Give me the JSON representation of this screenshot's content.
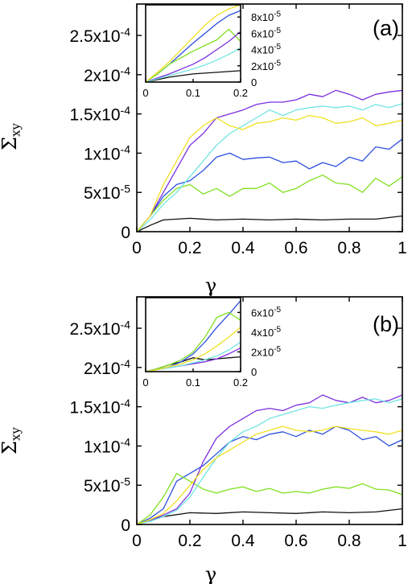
{
  "chart_data": [
    {
      "type": "line",
      "panel_label": "(a)",
      "xlabel": "γ",
      "ylabel": "Σxy",
      "ylabel_main": "Σ",
      "ylabel_sub": "xy",
      "xlim": [
        0,
        1
      ],
      "ylim": [
        0,
        0.00029
      ],
      "x_ticks": [
        0,
        0.2,
        0.4,
        0.6,
        0.8,
        1
      ],
      "x_tick_labels": [
        "0",
        "0.2",
        "0.4",
        "0.6",
        "0.8",
        "1"
      ],
      "y_ticks": [
        0,
        5e-05,
        0.0001,
        0.00015,
        0.0002,
        0.00025
      ],
      "y_tick_labels": [
        {
          "m": "0",
          "e": ""
        },
        {
          "m": "5x10",
          "e": "-5"
        },
        {
          "m": "1x10",
          "e": "-4"
        },
        {
          "m": "1.5x10",
          "e": "-4"
        },
        {
          "m": "2x10",
          "e": "-4"
        },
        {
          "m": "2.5x10",
          "e": "-4"
        }
      ],
      "series": [
        {
          "color": "#111111",
          "x": [
            0,
            0.05,
            0.1,
            0.2,
            0.3,
            0.4,
            0.5,
            0.6,
            0.7,
            0.8,
            0.9,
            1.0
          ],
          "y": [
            0,
            8e-06,
            1.5e-05,
            1.7e-05,
            1.5e-05,
            1.6e-05,
            1.5e-05,
            1.6e-05,
            1.5e-05,
            1.6e-05,
            1.6e-05,
            2e-05
          ]
        },
        {
          "color": "#2d4fe0",
          "x": [
            0,
            0.05,
            0.1,
            0.15,
            0.2,
            0.25,
            0.3,
            0.35,
            0.4,
            0.45,
            0.5,
            0.55,
            0.6,
            0.65,
            0.7,
            0.75,
            0.8,
            0.85,
            0.9,
            0.95,
            1.0
          ],
          "y": [
            0,
            2e-05,
            4.5e-05,
            6e-05,
            6.5e-05,
            7.8e-05,
            9.5e-05,
            0.0001,
            9.2e-05,
            9.4e-05,
            9.5e-05,
            8.8e-05,
            9e-05,
            8e-05,
            8.8e-05,
            8.3e-05,
            9.5e-05,
            9e-05,
            0.000108,
            0.000105,
            0.000118
          ]
        },
        {
          "color": "#7fe020",
          "x": [
            0,
            0.05,
            0.1,
            0.15,
            0.2,
            0.25,
            0.3,
            0.35,
            0.4,
            0.45,
            0.5,
            0.55,
            0.6,
            0.65,
            0.7,
            0.75,
            0.8,
            0.85,
            0.9,
            0.95,
            1.0
          ],
          "y": [
            0,
            2e-05,
            4e-05,
            5.5e-05,
            6e-05,
            4.8e-05,
            5.5e-05,
            4.5e-05,
            5.5e-05,
            5.5e-05,
            6.2e-05,
            5e-05,
            5.5e-05,
            6.5e-05,
            7.2e-05,
            6.2e-05,
            6e-05,
            5e-05,
            6.8e-05,
            5.8e-05,
            7e-05
          ]
        },
        {
          "color": "#7b2fe0",
          "x": [
            0,
            0.05,
            0.1,
            0.15,
            0.2,
            0.25,
            0.3,
            0.35,
            0.4,
            0.45,
            0.5,
            0.55,
            0.6,
            0.65,
            0.7,
            0.75,
            0.8,
            0.85,
            0.9,
            0.95,
            1.0
          ],
          "y": [
            0,
            2e-05,
            5e-05,
            8e-05,
            0.00011,
            0.000125,
            0.000145,
            0.00015,
            0.000155,
            0.000162,
            0.000165,
            0.000165,
            0.000168,
            0.000175,
            0.000172,
            0.00018,
            0.000175,
            0.000168,
            0.000175,
            0.000178,
            0.00018
          ]
        },
        {
          "color": "#6fe6e0",
          "x": [
            0,
            0.05,
            0.1,
            0.15,
            0.2,
            0.25,
            0.3,
            0.35,
            0.4,
            0.45,
            0.5,
            0.55,
            0.6,
            0.65,
            0.7,
            0.75,
            0.8,
            0.85,
            0.9,
            0.95,
            1.0
          ],
          "y": [
            0,
            1.5e-05,
            3.5e-05,
            5e-05,
            7e-05,
            9e-05,
            0.00011,
            0.000125,
            0.000135,
            0.000145,
            0.000155,
            0.000148,
            0.000155,
            0.000158,
            0.00016,
            0.000158,
            0.00016,
            0.000155,
            0.000162,
            0.000158,
            0.000163
          ]
        },
        {
          "color": "#f0e020",
          "x": [
            0,
            0.05,
            0.1,
            0.15,
            0.2,
            0.25,
            0.3,
            0.35,
            0.4,
            0.45,
            0.5,
            0.55,
            0.6,
            0.65,
            0.7,
            0.75,
            0.8,
            0.85,
            0.9,
            0.95,
            1.0
          ],
          "y": [
            0,
            2e-05,
            6e-05,
            9e-05,
            0.00012,
            0.000135,
            0.000145,
            0.000135,
            0.00013,
            0.000138,
            0.00014,
            0.000145,
            0.000142,
            0.000148,
            0.000145,
            0.000138,
            0.00014,
            0.000145,
            0.000135,
            0.000138,
            0.000142
          ]
        }
      ],
      "inset": {
        "xlim": [
          0,
          0.2
        ],
        "ylim": [
          0,
          9.5e-05
        ],
        "x_ticks": [
          0,
          0.1,
          0.2
        ],
        "x_tick_labels": [
          "0",
          "0.1",
          "0.2"
        ],
        "y_ticks": [
          0,
          2e-05,
          4e-05,
          6e-05,
          8e-05
        ],
        "y_tick_labels": [
          {
            "m": "0",
            "e": ""
          },
          {
            "m": "2x10",
            "e": "-5"
          },
          {
            "m": "4x10",
            "e": "-5"
          },
          {
            "m": "6x10",
            "e": "-5"
          },
          {
            "m": "8x10",
            "e": "-5"
          }
        ],
        "series": [
          {
            "color": "#111111",
            "x": [
              0,
              0.025,
              0.05,
              0.075,
              0.1,
              0.125,
              0.15,
              0.175,
              0.2
            ],
            "y": [
              0,
              3e-06,
              6e-06,
              8e-06,
              1e-05,
              1.1e-05,
              1.2e-05,
              1.3e-05,
              1.4e-05
            ]
          },
          {
            "color": "#2d4fe0",
            "x": [
              0,
              0.025,
              0.05,
              0.075,
              0.1,
              0.125,
              0.15,
              0.175,
              0.2
            ],
            "y": [
              0,
              1e-05,
              2.2e-05,
              3.5e-05,
              4.8e-05,
              6e-05,
              7.2e-05,
              8.2e-05,
              8.8e-05
            ]
          },
          {
            "color": "#7fe020",
            "x": [
              0,
              0.025,
              0.05,
              0.075,
              0.1,
              0.125,
              0.15,
              0.175,
              0.2
            ],
            "y": [
              0,
              1e-05,
              2.2e-05,
              3e-05,
              3.8e-05,
              4.5e-05,
              5.2e-05,
              6.5e-05,
              5e-05
            ]
          },
          {
            "color": "#7b2fe0",
            "x": [
              0,
              0.025,
              0.05,
              0.075,
              0.1,
              0.125,
              0.15,
              0.175,
              0.2
            ],
            "y": [
              0,
              5e-06,
              1e-05,
              1.6e-05,
              2.2e-05,
              3e-05,
              4e-05,
              5e-05,
              6.2e-05
            ]
          },
          {
            "color": "#6fe6e0",
            "x": [
              0,
              0.025,
              0.05,
              0.075,
              0.1,
              0.125,
              0.15,
              0.175,
              0.2
            ],
            "y": [
              0,
              4e-06,
              8e-06,
              1.2e-05,
              1.6e-05,
              2.1e-05,
              2.7e-05,
              3.4e-05,
              4.2e-05
            ]
          },
          {
            "color": "#f0e020",
            "x": [
              0,
              0.025,
              0.05,
              0.075,
              0.1,
              0.125,
              0.15,
              0.175,
              0.2
            ],
            "y": [
              0,
              1.2e-05,
              2.5e-05,
              4e-05,
              5.5e-05,
              7e-05,
              8.2e-05,
              9e-05,
              9.5e-05
            ]
          }
        ]
      }
    },
    {
      "type": "line",
      "panel_label": "(b)",
      "xlabel": "γ",
      "ylabel": "Σxy",
      "ylabel_main": "Σ",
      "ylabel_sub": "xy",
      "xlim": [
        0,
        1
      ],
      "ylim": [
        0,
        0.00029
      ],
      "x_ticks": [
        0,
        0.2,
        0.4,
        0.6,
        0.8,
        1
      ],
      "x_tick_labels": [
        "0",
        "0.2",
        "0.4",
        "0.6",
        "0.8",
        "1"
      ],
      "y_ticks": [
        0,
        5e-05,
        0.0001,
        0.00015,
        0.0002,
        0.00025
      ],
      "y_tick_labels": [
        {
          "m": "0",
          "e": ""
        },
        {
          "m": "5x10",
          "e": "-5"
        },
        {
          "m": "1x10",
          "e": "-4"
        },
        {
          "m": "1.5x10",
          "e": "-4"
        },
        {
          "m": "2x10",
          "e": "-4"
        },
        {
          "m": "2.5x10",
          "e": "-4"
        }
      ],
      "series": [
        {
          "color": "#111111",
          "x": [
            0,
            0.05,
            0.1,
            0.2,
            0.3,
            0.4,
            0.5,
            0.6,
            0.7,
            0.8,
            0.9,
            1.0
          ],
          "y": [
            0,
            5e-06,
            1e-05,
            1.5e-05,
            1.4e-05,
            1.6e-05,
            1.5e-05,
            1.4e-05,
            1.6e-05,
            1.5e-05,
            1.6e-05,
            2e-05
          ]
        },
        {
          "color": "#2d4fe0",
          "x": [
            0,
            0.05,
            0.1,
            0.15,
            0.2,
            0.25,
            0.3,
            0.35,
            0.4,
            0.45,
            0.5,
            0.55,
            0.6,
            0.65,
            0.7,
            0.75,
            0.8,
            0.85,
            0.9,
            0.95,
            1.0
          ],
          "y": [
            0,
            8e-06,
            2e-05,
            5.5e-05,
            6.5e-05,
            7.5e-05,
            9e-05,
            0.000105,
            0.000112,
            0.000108,
            0.000115,
            0.000118,
            0.000112,
            0.00012,
            0.000115,
            0.000125,
            0.00012,
            0.000108,
            0.000112,
            0.0001,
            0.000108
          ]
        },
        {
          "color": "#7fe020",
          "x": [
            0,
            0.05,
            0.1,
            0.15,
            0.2,
            0.25,
            0.3,
            0.35,
            0.4,
            0.45,
            0.5,
            0.55,
            0.6,
            0.65,
            0.7,
            0.75,
            0.8,
            0.85,
            0.9,
            0.95,
            1.0
          ],
          "y": [
            0,
            1.2e-05,
            3.5e-05,
            6.5e-05,
            5.5e-05,
            4.5e-05,
            4e-05,
            4.5e-05,
            4.8e-05,
            4.2e-05,
            4.6e-05,
            4e-05,
            4.2e-05,
            4e-05,
            4.5e-05,
            4.8e-05,
            4.6e-05,
            5.2e-05,
            4.5e-05,
            4.4e-05,
            3.8e-05
          ]
        },
        {
          "color": "#7b2fe0",
          "x": [
            0,
            0.05,
            0.1,
            0.15,
            0.2,
            0.25,
            0.3,
            0.35,
            0.4,
            0.45,
            0.5,
            0.55,
            0.6,
            0.65,
            0.7,
            0.75,
            0.8,
            0.85,
            0.9,
            0.95,
            1.0
          ],
          "y": [
            0,
            5e-06,
            1.2e-05,
            2e-05,
            4e-05,
            8e-05,
            0.00011,
            0.000125,
            0.000135,
            0.000145,
            0.000148,
            0.000145,
            0.000152,
            0.000155,
            0.000165,
            0.000158,
            0.000155,
            0.000162,
            0.000155,
            0.000158,
            0.000165
          ]
        },
        {
          "color": "#6fe6e0",
          "x": [
            0,
            0.05,
            0.1,
            0.15,
            0.2,
            0.25,
            0.3,
            0.35,
            0.4,
            0.45,
            0.5,
            0.55,
            0.6,
            0.65,
            0.7,
            0.75,
            0.8,
            0.85,
            0.9,
            0.95,
            1.0
          ],
          "y": [
            0,
            4e-06,
            1e-05,
            1.8e-05,
            3.5e-05,
            6e-05,
            8.5e-05,
            0.000105,
            0.000118,
            0.000125,
            0.000135,
            0.00014,
            0.000145,
            0.00015,
            0.000148,
            0.000152,
            0.000155,
            0.000158,
            0.00016,
            0.000155,
            0.00016
          ]
        },
        {
          "color": "#f0e020",
          "x": [
            0,
            0.05,
            0.1,
            0.15,
            0.2,
            0.25,
            0.3,
            0.35,
            0.4,
            0.45,
            0.5,
            0.55,
            0.6,
            0.65,
            0.7,
            0.75,
            0.8,
            0.85,
            0.9,
            0.95,
            1.0
          ],
          "y": [
            0,
            6e-06,
            1.4e-05,
            3e-05,
            5e-05,
            7e-05,
            8.5e-05,
            9.5e-05,
            0.000105,
            0.000115,
            0.00012,
            0.000125,
            0.00012,
            0.000118,
            0.00012,
            0.000125,
            0.000122,
            0.00012,
            0.000118,
            0.000115,
            0.00012
          ]
        }
      ],
      "inset": {
        "xlim": [
          0,
          0.2
        ],
        "ylim": [
          0,
          7.5e-05
        ],
        "x_ticks": [
          0,
          0.1,
          0.2
        ],
        "x_tick_labels": [
          "0",
          "0.1",
          "0.2"
        ],
        "y_ticks": [
          0,
          2e-05,
          4e-05,
          6e-05
        ],
        "y_tick_labels": [
          {
            "m": "0",
            "e": ""
          },
          {
            "m": "2x10",
            "e": "-5"
          },
          {
            "m": "4x10",
            "e": "-5"
          },
          {
            "m": "6x10",
            "e": "-5"
          }
        ],
        "series": [
          {
            "color": "#111111",
            "x": [
              0,
              0.025,
              0.05,
              0.075,
              0.1,
              0.125,
              0.15,
              0.175,
              0.2
            ],
            "y": [
              0,
              3e-06,
              7e-06,
              1e-05,
              1.4e-05,
              1.2e-05,
              1.3e-05,
              1.4e-05,
              1.5e-05
            ]
          },
          {
            "color": "#2d4fe0",
            "x": [
              0,
              0.025,
              0.05,
              0.075,
              0.1,
              0.125,
              0.15,
              0.175,
              0.2
            ],
            "y": [
              0,
              2e-06,
              5e-06,
              1e-05,
              1.8e-05,
              3e-05,
              4.5e-05,
              5.8e-05,
              7.2e-05
            ]
          },
          {
            "color": "#7fe020",
            "x": [
              0,
              0.025,
              0.05,
              0.075,
              0.1,
              0.125,
              0.15,
              0.175,
              0.2
            ],
            "y": [
              0,
              3e-06,
              7e-06,
              1.2e-05,
              2e-05,
              3.5e-05,
              5.5e-05,
              6e-05,
              5.2e-05
            ]
          },
          {
            "color": "#7b2fe0",
            "x": [
              0,
              0.025,
              0.05,
              0.075,
              0.1,
              0.125,
              0.15,
              0.175,
              0.2
            ],
            "y": [
              0,
              2e-06,
              4e-06,
              6e-06,
              8e-06,
              1e-05,
              1.3e-05,
              1.8e-05,
              2.4e-05
            ]
          },
          {
            "color": "#6fe6e0",
            "x": [
              0,
              0.025,
              0.05,
              0.075,
              0.1,
              0.125,
              0.15,
              0.175,
              0.2
            ],
            "y": [
              0,
              2e-06,
              4e-06,
              6e-06,
              9e-06,
              1.2e-05,
              1.6e-05,
              2.2e-05,
              3e-05
            ]
          },
          {
            "color": "#f0e020",
            "x": [
              0,
              0.025,
              0.05,
              0.075,
              0.1,
              0.125,
              0.15,
              0.175,
              0.2
            ],
            "y": [
              0,
              2e-06,
              5e-06,
              8e-06,
              1.2e-05,
              1.8e-05,
              2.6e-05,
              3.5e-05,
              4.5e-05
            ]
          }
        ]
      }
    }
  ]
}
